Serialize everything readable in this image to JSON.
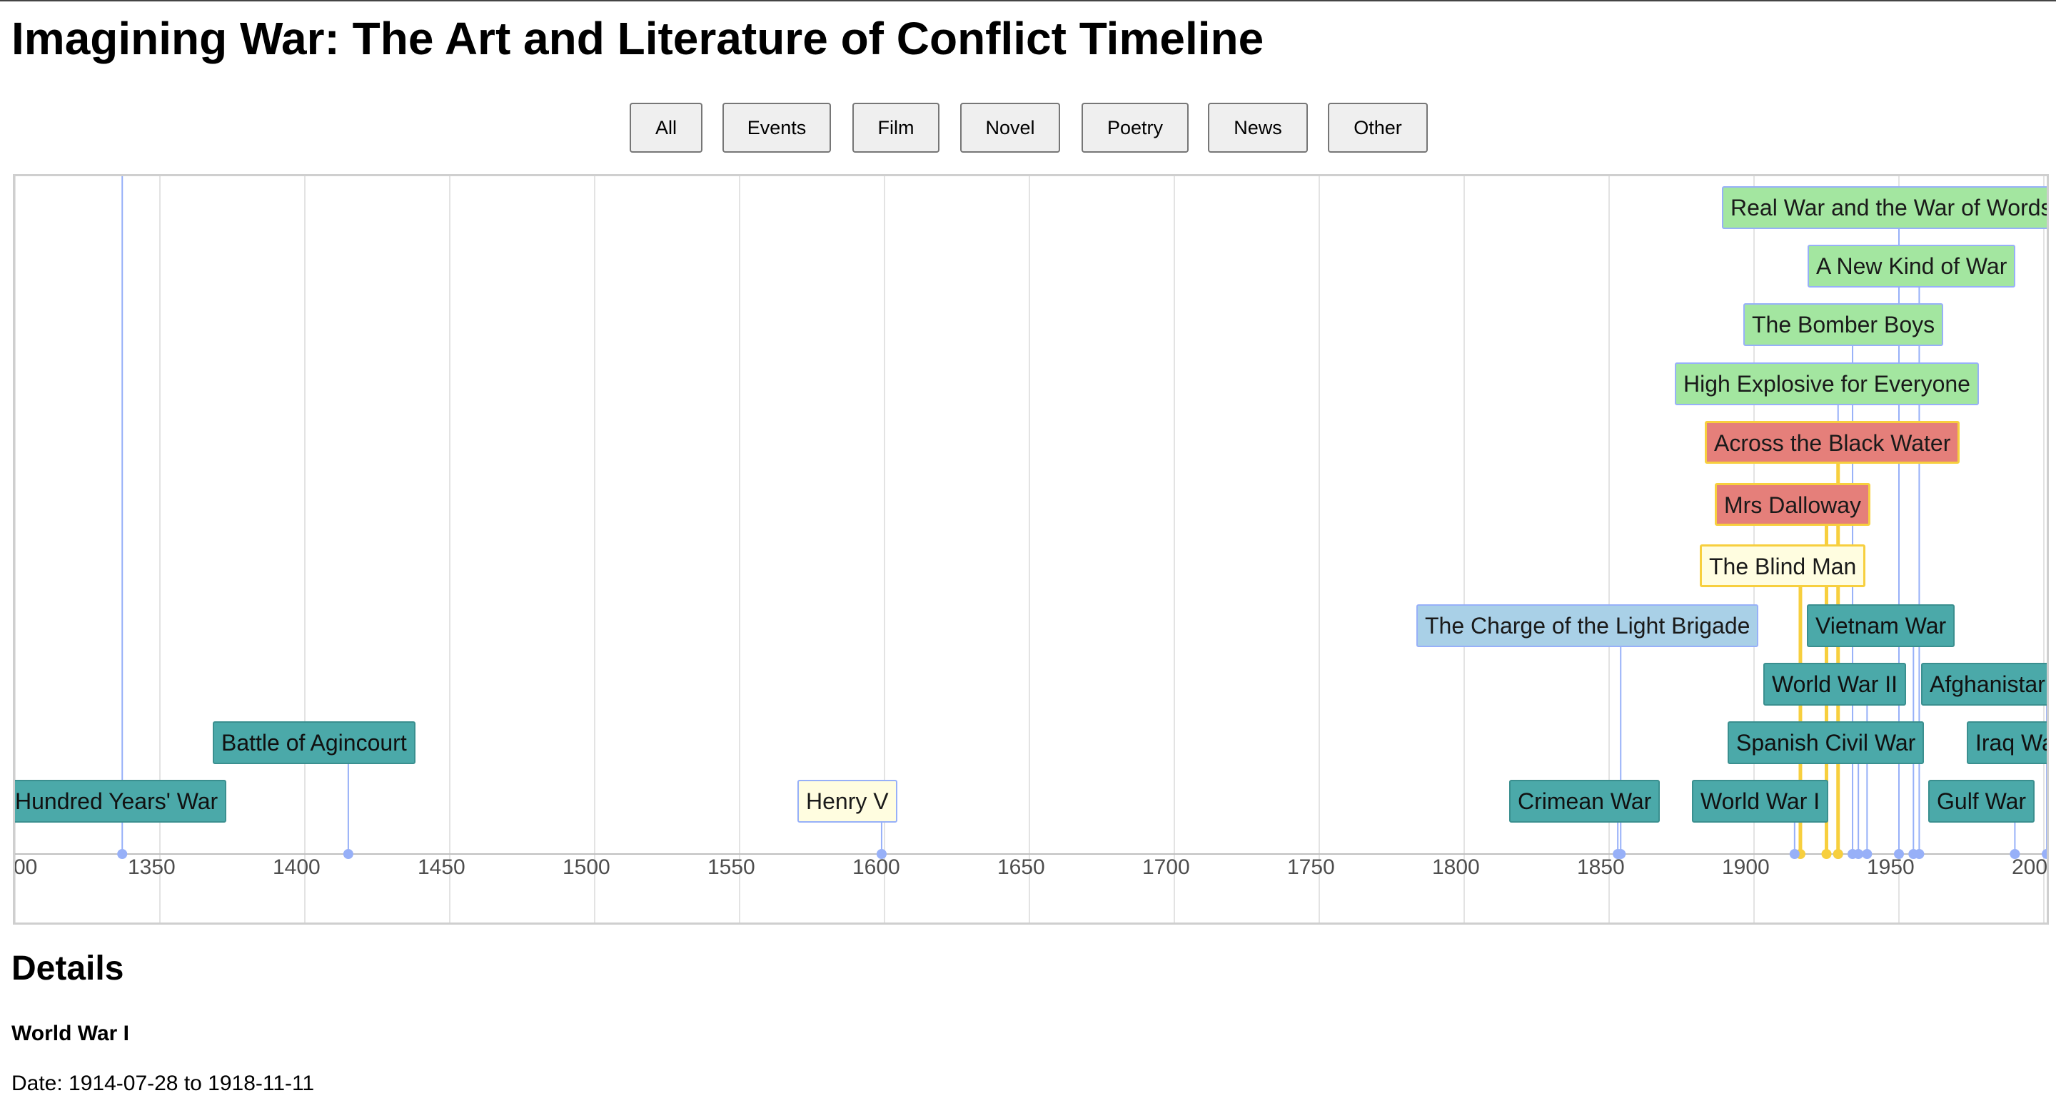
{
  "title": "Imagining War: The Art and Literature of Conflict Timeline",
  "filters": [
    "All",
    "Events",
    "Film",
    "Novel",
    "Poetry",
    "News",
    "Other"
  ],
  "axis": {
    "start_year": 1300,
    "end_year": 2000,
    "ticks": [
      "00",
      "1350",
      "1400",
      "1450",
      "1500",
      "1550",
      "1600",
      "1650",
      "1700",
      "1750",
      "1800",
      "1850",
      "1900",
      "1950",
      "200"
    ]
  },
  "items": [
    {
      "id": "real-war",
      "label": "Real War and the War of Words",
      "category": "news",
      "year": 1950
    },
    {
      "id": "new-kind-of-war",
      "label": "A New Kind of War",
      "category": "news",
      "year": 1957
    },
    {
      "id": "bomber-boys",
      "label": "The Bomber Boys",
      "category": "news",
      "year": 1934
    },
    {
      "id": "high-explosive",
      "label": "High Explosive for Everyone",
      "category": "news",
      "year": 1929
    },
    {
      "id": "black-water",
      "label": "Across the Black Water",
      "category": "novel",
      "year": 1929
    },
    {
      "id": "mrs-dalloway",
      "label": "Mrs Dalloway",
      "category": "novel",
      "year": 1925
    },
    {
      "id": "blind-man",
      "label": "The Blind Man",
      "category": "other",
      "year": 1916
    },
    {
      "id": "light-brigade",
      "label": "The Charge of the Light Brigade",
      "category": "film",
      "year": 1854
    },
    {
      "id": "vietnam-war",
      "label": "Vietnam War",
      "category": "events",
      "year": 1955
    },
    {
      "id": "ww2",
      "label": "World War II",
      "category": "events",
      "year": 1939
    },
    {
      "id": "afghanistan",
      "label": "Afghanistar",
      "category": "events",
      "year": 2001
    },
    {
      "id": "agincourt",
      "label": "Battle of Agincourt",
      "category": "events",
      "year": 1415
    },
    {
      "id": "spanish-civil-war",
      "label": "Spanish Civil War",
      "category": "events",
      "year": 1936
    },
    {
      "id": "iraq-war",
      "label": "Iraq Wa",
      "category": "events",
      "year": 2003
    },
    {
      "id": "hundred-years",
      "label": "Hundred Years' War",
      "category": "events",
      "year": 1337
    },
    {
      "id": "henry-v",
      "label": "Henry V",
      "category": "poetry",
      "year": 1599
    },
    {
      "id": "crimean-war",
      "label": "Crimean War",
      "category": "events",
      "year": 1853
    },
    {
      "id": "ww1",
      "label": "World War I",
      "category": "events",
      "year": 1914
    },
    {
      "id": "gulf-war",
      "label": "Gulf War",
      "category": "events",
      "year": 1990
    }
  ],
  "details": {
    "heading": "Details",
    "name": "World War I",
    "date": "Date: 1914-07-28 to 1918-11-11"
  }
}
